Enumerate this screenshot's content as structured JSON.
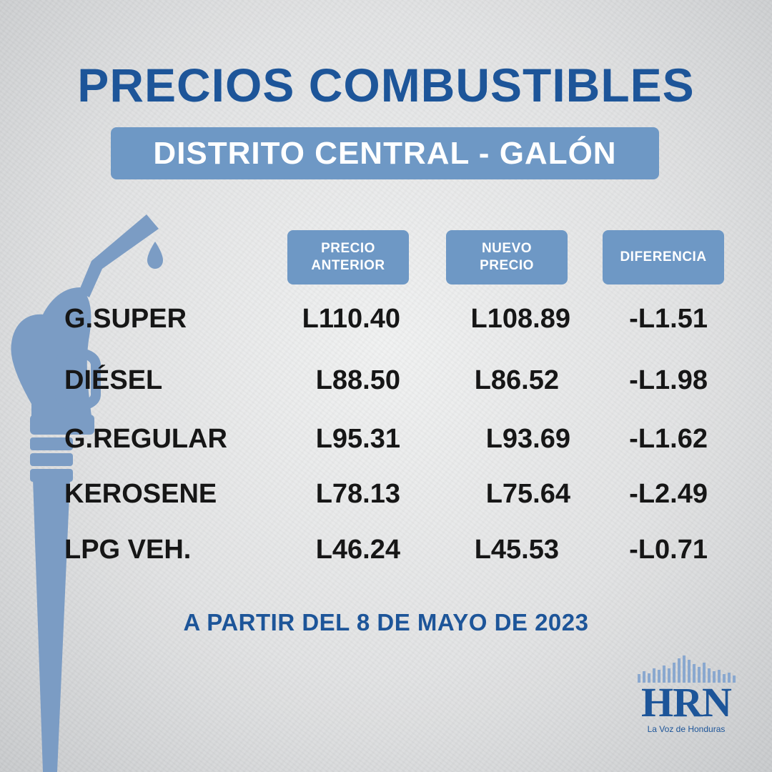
{
  "title": "PRECIOS COMBUSTIBLES",
  "subtitle": "DISTRITO CENTRAL - GALÓN",
  "headers": {
    "previous_line1": "PRECIO",
    "previous_line2": "ANTERIOR",
    "new_line1": "NUEVO",
    "new_line2": "PRECIO",
    "difference": "DIFERENCIA"
  },
  "rows": [
    {
      "name": "G.SUPER",
      "previous": "L110.40",
      "new": "L108.89",
      "difference": "-L1.51"
    },
    {
      "name": "DIÉSEL",
      "previous": "L88.50",
      "new": "L86.52",
      "difference": "-L1.98"
    },
    {
      "name": "G.REGULAR",
      "previous": "L95.31",
      "new": "L93.69",
      "difference": "-L1.62"
    },
    {
      "name": "KEROSENE",
      "previous": "L78.13",
      "new": "L75.64",
      "difference": "-L2.49"
    },
    {
      "name": "LPG VEH.",
      "previous": "L46.24",
      "new": "L45.53",
      "difference": "-L0.71"
    }
  ],
  "footer": "A PARTIR DEL 8 DE MAYO DE 2023",
  "logo": {
    "name": "HRN",
    "tagline": "La Voz de Honduras"
  },
  "icons": {
    "pump": "fuel-nozzle-icon",
    "drop": "fuel-drop-icon",
    "logo_bars": "signal-bars-icon"
  },
  "colors": {
    "brand_blue": "#1d5599",
    "box_blue": "#6e98c5",
    "nozzle_blue": "#7b9cc4",
    "text_dark": "#161616"
  }
}
